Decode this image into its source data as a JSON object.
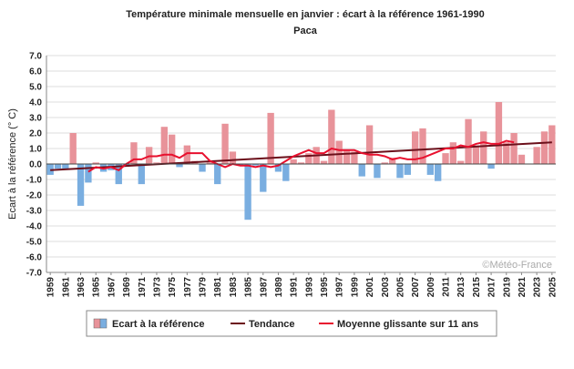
{
  "chart_data": {
    "type": "bar",
    "title": "Température minimale mensuelle en janvier : écart à la référence 1961-1990",
    "subtitle": "Paca",
    "y_label": "Ecart à la référence (° C)",
    "watermark": "©Météo-France",
    "x": [
      1959,
      1960,
      1961,
      1962,
      1963,
      1964,
      1965,
      1966,
      1967,
      1968,
      1969,
      1970,
      1971,
      1972,
      1973,
      1974,
      1975,
      1976,
      1977,
      1978,
      1979,
      1980,
      1981,
      1982,
      1983,
      1984,
      1985,
      1986,
      1987,
      1988,
      1989,
      1990,
      1991,
      1992,
      1993,
      1994,
      1995,
      1996,
      1997,
      1998,
      1999,
      2000,
      2001,
      2002,
      2003,
      2004,
      2005,
      2006,
      2007,
      2008,
      2009,
      2010,
      2011,
      2012,
      2013,
      2014,
      2015,
      2016,
      2017,
      2018,
      2019,
      2020,
      2021,
      2022,
      2023,
      2024,
      2025
    ],
    "xlim": [
      1958.5,
      2025.5
    ],
    "xticks": [
      1959,
      1961,
      1963,
      1965,
      1967,
      1969,
      1971,
      1973,
      1975,
      1977,
      1979,
      1981,
      1983,
      1985,
      1987,
      1989,
      1991,
      1993,
      1995,
      1997,
      1999,
      2001,
      2003,
      2005,
      2007,
      2009,
      2011,
      2013,
      2015,
      2017,
      2019,
      2021,
      2023,
      2025
    ],
    "ylim": [
      -7,
      7
    ],
    "yticks": [
      {
        "value": -7,
        "label": "-7.0"
      },
      {
        "value": -6,
        "label": "-6.0"
      },
      {
        "value": -5,
        "label": "-5.0"
      },
      {
        "value": -4,
        "label": "-4.0"
      },
      {
        "value": -3,
        "label": "-3.0"
      },
      {
        "value": -2,
        "label": "-2.0"
      },
      {
        "value": -1,
        "label": "-1.0"
      },
      {
        "value": 0,
        "label": "0.0"
      },
      {
        "value": 1,
        "label": "1.0"
      },
      {
        "value": 2,
        "label": "2.0"
      },
      {
        "value": 3,
        "label": "3.0"
      },
      {
        "value": 4,
        "label": "4.0"
      },
      {
        "value": 5,
        "label": "5.0"
      },
      {
        "value": 6,
        "label": "6.0"
      },
      {
        "value": 7,
        "label": "7.0"
      }
    ],
    "grid": true,
    "series": [
      {
        "name": "Ecart à la référence",
        "kind": "bar",
        "positive_color": "#e8939a",
        "negative_color": "#7aaee0",
        "values": [
          -0.7,
          -0.3,
          -0.3,
          2.0,
          -2.7,
          -1.2,
          0.1,
          -0.5,
          -0.4,
          -1.3,
          -0.1,
          1.4,
          -1.3,
          1.1,
          0.1,
          2.4,
          1.9,
          -0.2,
          1.2,
          0.2,
          -0.5,
          0.1,
          -1.3,
          2.6,
          0.8,
          -0.1,
          -3.6,
          -0.1,
          -1.8,
          3.3,
          -0.5,
          -1.1,
          0.3,
          0.1,
          0.7,
          1.1,
          0.2,
          3.5,
          1.5,
          0.9,
          0.8,
          -0.8,
          2.5,
          -0.9,
          0.1,
          0.4,
          -0.9,
          -0.7,
          2.1,
          2.3,
          -0.7,
          -1.1,
          0.7,
          1.4,
          0.2,
          2.9,
          1.2,
          2.1,
          -0.3,
          4.0,
          1.4,
          2.0,
          0.6,
          0.0,
          1.1,
          2.1,
          2.5
        ]
      },
      {
        "name": "Tendance",
        "kind": "line",
        "color": "#6b0f1a",
        "x": [
          1959,
          2025
        ],
        "values": [
          -0.4,
          1.4
        ]
      },
      {
        "name": "Moyenne glissante sur 11 ans",
        "kind": "line",
        "color": "#e8102e",
        "values": [
          null,
          null,
          null,
          null,
          null,
          -0.5,
          -0.2,
          -0.3,
          -0.2,
          -0.4,
          0.0,
          0.3,
          0.3,
          0.5,
          0.5,
          0.6,
          0.6,
          0.4,
          0.7,
          0.7,
          0.7,
          0.2,
          0.0,
          -0.2,
          0.0,
          -0.1,
          -0.1,
          -0.2,
          -0.1,
          -0.2,
          -0.1,
          0.2,
          0.5,
          0.7,
          0.9,
          0.7,
          0.7,
          1.0,
          0.9,
          0.9,
          0.9,
          0.7,
          0.6,
          0.6,
          0.5,
          0.3,
          0.4,
          0.3,
          0.3,
          0.4,
          0.6,
          0.8,
          1.0,
          1.0,
          1.2,
          1.1,
          1.3,
          1.4,
          1.3,
          1.3,
          1.5,
          1.4,
          null,
          null,
          null,
          null,
          null
        ]
      }
    ]
  }
}
